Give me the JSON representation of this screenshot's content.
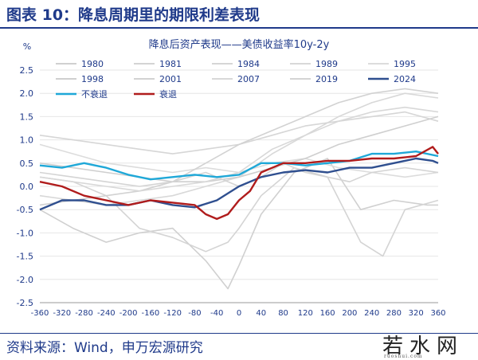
{
  "figure": {
    "title": "图表 10：降息周期里的期限利差表现",
    "source": "资料来源：Wind，申万宏源研究",
    "watermark": "若水网",
    "watermark_sub": "ruoshui.com"
  },
  "chart_data": {
    "type": "line",
    "title": "降息后资产表现——美债收益率10y-2y",
    "ylabel": "%",
    "ylim": [
      -2.5,
      2.5
    ],
    "xlim": [
      -360,
      360
    ],
    "x_ticks": [
      -360,
      -320,
      -280,
      -240,
      -200,
      -160,
      -120,
      -80,
      -40,
      0,
      40,
      80,
      120,
      160,
      200,
      240,
      280,
      320,
      360
    ],
    "x_tick_labels": [
      "-360",
      "-320",
      "-280",
      "-240",
      "-200",
      "-160",
      "-120",
      "-80",
      "-40",
      "0",
      "40",
      "80",
      "120",
      "160",
      "200",
      "240",
      "280",
      "320",
      "360"
    ],
    "y_ticks": [
      -2.5,
      -2.0,
      -1.5,
      -1.0,
      -0.5,
      0.0,
      0.5,
      1.0,
      1.5,
      2.0,
      2.5
    ],
    "y_tick_labels": [
      "-2.5",
      "-2.0",
      "-1.5",
      "-1.0",
      "-0.5",
      "0.0",
      "0.5",
      "1.0",
      "1.5",
      "2.0",
      "2.5"
    ],
    "grid": true,
    "legend_position": "top",
    "colors": {
      "grey": "#d2d2d2",
      "dark_blue": "#2f4f8f",
      "cyan": "#1fa8d8",
      "red": "#b01c1c"
    },
    "series": [
      {
        "name": "1980",
        "color": "#d0d0d0",
        "x": [
          -360,
          -300,
          -240,
          -180,
          -120,
          -60,
          -20,
          0,
          40,
          100,
          160,
          220,
          280,
          340,
          360
        ],
        "values": [
          -0.5,
          -0.9,
          -1.2,
          -1.0,
          -0.9,
          -1.6,
          -2.2,
          -1.7,
          -0.6,
          0.3,
          0.6,
          -0.5,
          -0.3,
          -0.4,
          -0.4
        ]
      },
      {
        "name": "1981",
        "color": "#d4d4d4",
        "x": [
          -360,
          -300,
          -240,
          -180,
          -120,
          -60,
          -20,
          0,
          40,
          100,
          160,
          220,
          260,
          300,
          360
        ],
        "values": [
          0.2,
          0.1,
          -0.2,
          -0.9,
          -1.1,
          -1.4,
          -1.2,
          -0.9,
          -0.2,
          0.4,
          0.2,
          -1.2,
          -1.5,
          -0.5,
          -0.3
        ]
      },
      {
        "name": "1984",
        "color": "#d6d6d6",
        "x": [
          -360,
          -300,
          -240,
          -180,
          -120,
          -60,
          0,
          60,
          120,
          180,
          240,
          300,
          360
        ],
        "values": [
          1.1,
          1.0,
          0.9,
          0.8,
          0.7,
          0.8,
          0.9,
          1.1,
          1.3,
          1.4,
          1.5,
          1.6,
          1.4
        ]
      },
      {
        "name": "1989",
        "color": "#d8d8d8",
        "x": [
          -360,
          -300,
          -240,
          -180,
          -120,
          -60,
          0,
          60,
          120,
          180,
          240,
          300,
          360
        ],
        "values": [
          -0.2,
          -0.3,
          -0.4,
          -0.3,
          -0.2,
          0.0,
          0.2,
          0.7,
          1.1,
          1.5,
          1.8,
          2.0,
          1.9
        ]
      },
      {
        "name": "1995",
        "color": "#dcdcdc",
        "x": [
          -360,
          -300,
          -240,
          -180,
          -120,
          -60,
          0,
          60,
          120,
          180,
          240,
          300,
          360
        ],
        "values": [
          0.9,
          0.7,
          0.5,
          0.4,
          0.3,
          0.4,
          0.3,
          0.5,
          0.6,
          0.4,
          0.3,
          0.2,
          0.3
        ]
      },
      {
        "name": "1998",
        "color": "#cfcfcf",
        "x": [
          -360,
          -300,
          -240,
          -180,
          -120,
          -60,
          0,
          60,
          120,
          180,
          240,
          300,
          360
        ],
        "values": [
          0.5,
          0.4,
          0.3,
          0.2,
          0.1,
          0.1,
          0.2,
          0.4,
          0.6,
          0.9,
          1.1,
          1.3,
          1.5
        ]
      },
      {
        "name": "2001",
        "color": "#d2d2d2",
        "x": [
          -360,
          -300,
          -240,
          -180,
          -120,
          -60,
          0,
          60,
          120,
          180,
          240,
          300,
          360
        ],
        "values": [
          -0.4,
          -0.3,
          -0.2,
          -0.1,
          0.1,
          0.5,
          0.9,
          1.2,
          1.5,
          1.8,
          2.0,
          2.1,
          2.0
        ]
      },
      {
        "name": "2007",
        "color": "#d8d8d8",
        "x": [
          -360,
          -300,
          -240,
          -180,
          -120,
          -60,
          0,
          60,
          120,
          180,
          240,
          300,
          360
        ],
        "values": [
          0.2,
          0.1,
          0.0,
          -0.1,
          0.0,
          0.1,
          0.3,
          0.8,
          1.1,
          1.4,
          1.6,
          1.7,
          1.6
        ]
      },
      {
        "name": "2019",
        "color": "#d4d4d4",
        "x": [
          -360,
          -300,
          -240,
          -180,
          -120,
          -60,
          0,
          40,
          80,
          120,
          160,
          200,
          240,
          300,
          360
        ],
        "values": [
          0.3,
          0.2,
          0.1,
          0.0,
          0.1,
          0.3,
          0.0,
          0.2,
          0.5,
          0.3,
          0.2,
          0.1,
          0.3,
          0.4,
          0.3
        ]
      },
      {
        "name": "2024",
        "color": "#2f4f8f",
        "bold": true,
        "x": [
          -360,
          -340,
          -320,
          -280,
          -240,
          -200,
          -160,
          -120,
          -80,
          -40,
          0,
          40,
          80,
          120,
          160,
          200,
          240,
          280,
          320,
          350,
          360
        ],
        "values": [
          -0.5,
          -0.4,
          -0.3,
          -0.3,
          -0.4,
          -0.4,
          -0.3,
          -0.4,
          -0.45,
          -0.3,
          0.0,
          0.2,
          0.3,
          0.35,
          0.3,
          0.4,
          0.4,
          0.5,
          0.6,
          0.55,
          0.5
        ]
      },
      {
        "name": "不衰退",
        "color": "#1fa8d8",
        "bold": true,
        "x": [
          -360,
          -320,
          -280,
          -240,
          -200,
          -160,
          -120,
          -80,
          -40,
          0,
          40,
          80,
          120,
          160,
          200,
          240,
          280,
          320,
          360
        ],
        "values": [
          0.45,
          0.4,
          0.5,
          0.4,
          0.25,
          0.15,
          0.2,
          0.25,
          0.2,
          0.25,
          0.5,
          0.5,
          0.45,
          0.5,
          0.55,
          0.7,
          0.7,
          0.75,
          0.65
        ]
      },
      {
        "name": "衰退",
        "color": "#b01c1c",
        "bold": true,
        "x": [
          -360,
          -320,
          -280,
          -240,
          -200,
          -160,
          -120,
          -80,
          -60,
          -40,
          -20,
          0,
          20,
          40,
          80,
          120,
          160,
          200,
          240,
          280,
          320,
          350,
          360
        ],
        "values": [
          0.1,
          0.0,
          -0.2,
          -0.3,
          -0.4,
          -0.3,
          -0.35,
          -0.4,
          -0.6,
          -0.7,
          -0.6,
          -0.3,
          -0.1,
          0.3,
          0.5,
          0.5,
          0.55,
          0.55,
          0.6,
          0.6,
          0.65,
          0.85,
          0.7
        ]
      }
    ]
  }
}
